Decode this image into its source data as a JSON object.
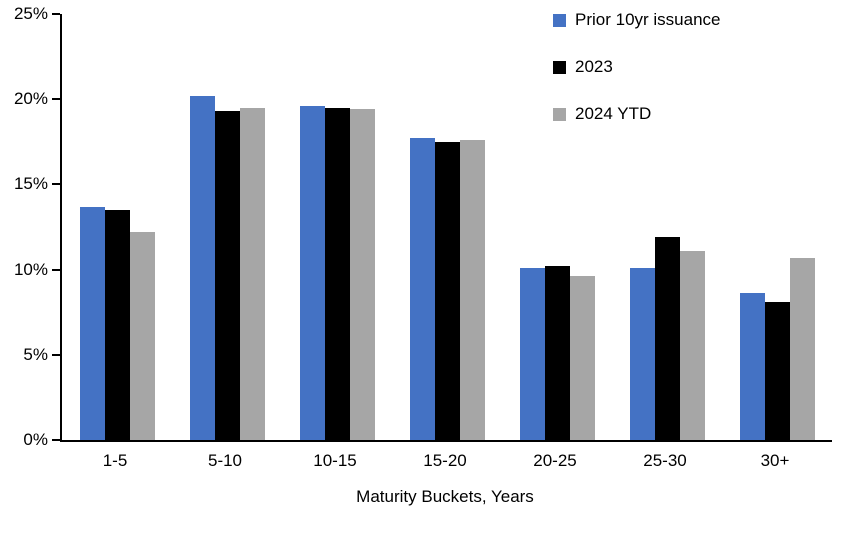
{
  "chart_data": {
    "type": "bar",
    "title": "",
    "xlabel": "Maturity Buckets, Years",
    "ylabel": "",
    "ylim": [
      0,
      25
    ],
    "yticks": [
      0,
      5,
      10,
      15,
      20,
      25
    ],
    "ytick_labels": [
      "0%",
      "5%",
      "10%",
      "15%",
      "20%",
      "25%"
    ],
    "grid": false,
    "legend_position": "top-right",
    "categories": [
      "1-5",
      "5-10",
      "10-15",
      "15-20",
      "20-25",
      "25-30",
      "30+"
    ],
    "series": [
      {
        "name": "Prior 10yr issuance",
        "color": "#4472C4",
        "values": [
          13.7,
          20.2,
          19.6,
          17.7,
          10.1,
          10.1,
          8.6
        ]
      },
      {
        "name": "2023",
        "color": "#000000",
        "values": [
          13.5,
          19.3,
          19.5,
          17.5,
          10.2,
          11.9,
          8.1
        ]
      },
      {
        "name": "2024 YTD",
        "color": "#A6A6A6",
        "values": [
          12.2,
          19.5,
          19.4,
          17.6,
          9.6,
          11.1,
          10.7
        ]
      }
    ]
  }
}
